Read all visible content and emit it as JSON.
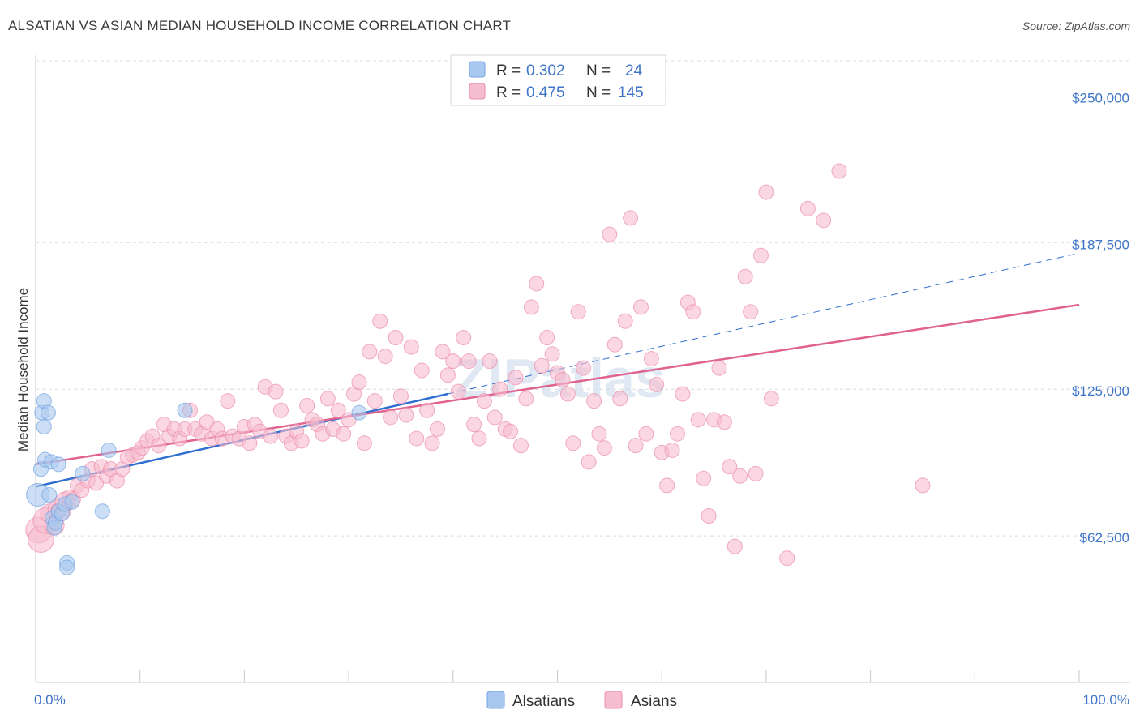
{
  "title": "ALSATIAN VS ASIAN MEDIAN HOUSEHOLD INCOME CORRELATION CHART",
  "source": "Source: ZipAtlas.com",
  "watermark": "ZIPatlas",
  "colors": {
    "blue": "#6fa3e0",
    "blue_fill": "#a9c8ef",
    "blue_line": "#2f6fd0",
    "pink": "#eb8bab",
    "pink_fill": "#f6bccf",
    "pink_line": "#e0628f",
    "axis_label": "#3d74c7",
    "grid": "#dcdcdc"
  },
  "legend": {
    "rows": [
      {
        "r_label": "R =",
        "r_value": "0.302",
        "n_label": "N =",
        "n_value": "24"
      },
      {
        "r_label": "R =",
        "r_value": "0.475",
        "n_label": "N =",
        "n_value": "145"
      }
    ]
  },
  "bottom_legend": [
    "Alsatians",
    "Asians"
  ],
  "chart_data": {
    "type": "scatter",
    "title": "ALSATIAN VS ASIAN MEDIAN HOUSEHOLD INCOME CORRELATION CHART",
    "xlabel": "",
    "ylabel": "Median Household Income",
    "xlim": [
      0,
      100
    ],
    "ylim": [
      0,
      265000
    ],
    "x_tick_labels": [
      "0.0%",
      "100.0%"
    ],
    "y_ticks": [
      62500,
      125000,
      187500,
      250000
    ],
    "y_tick_labels": [
      "$62,500",
      "$125,000",
      "$187,500",
      "$250,000"
    ],
    "grid": true,
    "series": [
      {
        "name": "Alsatians",
        "R": 0.302,
        "N": 24,
        "trend": {
          "x0": 0,
          "y0": 83500,
          "x1": 39.5,
          "y1": 123000,
          "dash_to_x": 100,
          "dash_to_y": 183000
        },
        "points": [
          [
            0.2,
            80000
          ],
          [
            0.5,
            91000
          ],
          [
            0.6,
            115000
          ],
          [
            0.8,
            109000
          ],
          [
            0.8,
            120000
          ],
          [
            0.9,
            95000
          ],
          [
            1.2,
            115000
          ],
          [
            1.3,
            80000
          ],
          [
            1.5,
            94000
          ],
          [
            1.6,
            70000
          ],
          [
            1.8,
            66000
          ],
          [
            1.9,
            68000
          ],
          [
            2.2,
            93000
          ],
          [
            2.2,
            73000
          ],
          [
            2.5,
            72000
          ],
          [
            2.8,
            76000
          ],
          [
            3.0,
            51000
          ],
          [
            3.0,
            49000
          ],
          [
            3.5,
            77000
          ],
          [
            4.5,
            89000
          ],
          [
            6.4,
            73000
          ],
          [
            7.0,
            99000
          ],
          [
            14.3,
            116000
          ],
          [
            31.0,
            115000
          ]
        ]
      },
      {
        "name": "Asians",
        "R": 0.475,
        "N": 145,
        "trend": {
          "x0": 0,
          "y0": 93000,
          "x1": 100,
          "y1": 161000
        },
        "points": [
          [
            0.3,
            65000
          ],
          [
            0.5,
            61000
          ],
          [
            1.0,
            69000
          ],
          [
            1.4,
            72000
          ],
          [
            1.8,
            67000
          ],
          [
            2.1,
            74000
          ],
          [
            2.4,
            73000
          ],
          [
            2.8,
            77000
          ],
          [
            3.2,
            79000
          ],
          [
            3.6,
            78000
          ],
          [
            4.0,
            84000
          ],
          [
            4.4,
            82000
          ],
          [
            5.0,
            86000
          ],
          [
            5.4,
            91000
          ],
          [
            5.8,
            85000
          ],
          [
            6.3,
            92000
          ],
          [
            6.8,
            88000
          ],
          [
            7.2,
            91000
          ],
          [
            7.8,
            86000
          ],
          [
            8.3,
            91000
          ],
          [
            8.8,
            96000
          ],
          [
            9.3,
            97000
          ],
          [
            9.8,
            98000
          ],
          [
            10.2,
            100000
          ],
          [
            10.7,
            103000
          ],
          [
            11.2,
            105000
          ],
          [
            11.8,
            101000
          ],
          [
            12.3,
            110000
          ],
          [
            12.8,
            105000
          ],
          [
            13.3,
            108000
          ],
          [
            13.8,
            104000
          ],
          [
            14.3,
            108000
          ],
          [
            14.8,
            116000
          ],
          [
            15.3,
            108000
          ],
          [
            15.9,
            106000
          ],
          [
            16.4,
            111000
          ],
          [
            16.9,
            104000
          ],
          [
            17.4,
            108000
          ],
          [
            17.9,
            104000
          ],
          [
            18.4,
            120000
          ],
          [
            18.9,
            105000
          ],
          [
            19.5,
            104000
          ],
          [
            20.0,
            109000
          ],
          [
            20.5,
            102000
          ],
          [
            21.0,
            110000
          ],
          [
            21.5,
            107000
          ],
          [
            22.0,
            126000
          ],
          [
            22.5,
            105000
          ],
          [
            23.0,
            124000
          ],
          [
            23.5,
            116000
          ],
          [
            24.0,
            105000
          ],
          [
            24.5,
            102000
          ],
          [
            25.0,
            107000
          ],
          [
            25.5,
            103000
          ],
          [
            26.0,
            118000
          ],
          [
            26.5,
            112000
          ],
          [
            27.0,
            110000
          ],
          [
            27.5,
            106000
          ],
          [
            28.0,
            121000
          ],
          [
            28.5,
            108000
          ],
          [
            29.0,
            116000
          ],
          [
            29.5,
            106000
          ],
          [
            30.0,
            112000
          ],
          [
            30.5,
            123000
          ],
          [
            31.0,
            128000
          ],
          [
            31.5,
            102000
          ],
          [
            32.0,
            141000
          ],
          [
            32.5,
            120000
          ],
          [
            33.0,
            154000
          ],
          [
            33.5,
            139000
          ],
          [
            34.0,
            113000
          ],
          [
            34.5,
            147000
          ],
          [
            35.0,
            122000
          ],
          [
            35.5,
            114000
          ],
          [
            36.0,
            143000
          ],
          [
            36.5,
            104000
          ],
          [
            37.0,
            133000
          ],
          [
            37.5,
            116000
          ],
          [
            38.0,
            102000
          ],
          [
            38.5,
            108000
          ],
          [
            39.0,
            141000
          ],
          [
            39.5,
            131000
          ],
          [
            40.0,
            137000
          ],
          [
            40.5,
            124000
          ],
          [
            41.0,
            147000
          ],
          [
            41.5,
            137000
          ],
          [
            42.0,
            110000
          ],
          [
            42.5,
            104000
          ],
          [
            43.0,
            120000
          ],
          [
            43.5,
            137000
          ],
          [
            44.0,
            113000
          ],
          [
            44.5,
            125000
          ],
          [
            45.0,
            108000
          ],
          [
            45.5,
            107000
          ],
          [
            46.0,
            130000
          ],
          [
            46.5,
            101000
          ],
          [
            47.0,
            121000
          ],
          [
            47.5,
            160000
          ],
          [
            48.0,
            170000
          ],
          [
            48.5,
            135000
          ],
          [
            49.0,
            147000
          ],
          [
            49.5,
            140000
          ],
          [
            50.0,
            132000
          ],
          [
            50.5,
            129000
          ],
          [
            51.0,
            123000
          ],
          [
            51.5,
            102000
          ],
          [
            52.0,
            158000
          ],
          [
            52.5,
            134000
          ],
          [
            53.0,
            94000
          ],
          [
            53.5,
            120000
          ],
          [
            54.0,
            106000
          ],
          [
            54.5,
            100000
          ],
          [
            55.0,
            191000
          ],
          [
            55.5,
            144000
          ],
          [
            56.0,
            121000
          ],
          [
            56.5,
            154000
          ],
          [
            57.0,
            198000
          ],
          [
            57.5,
            101000
          ],
          [
            58.0,
            160000
          ],
          [
            58.5,
            106000
          ],
          [
            59.0,
            138000
          ],
          [
            59.5,
            127000
          ],
          [
            60.0,
            98000
          ],
          [
            60.5,
            84000
          ],
          [
            61.0,
            99000
          ],
          [
            61.5,
            106000
          ],
          [
            62.0,
            123000
          ],
          [
            62.5,
            162000
          ],
          [
            63.0,
            158000
          ],
          [
            63.5,
            112000
          ],
          [
            64.0,
            87000
          ],
          [
            64.5,
            71000
          ],
          [
            65.0,
            112000
          ],
          [
            65.5,
            134000
          ],
          [
            66.0,
            111000
          ],
          [
            66.5,
            92000
          ],
          [
            67.0,
            58000
          ],
          [
            67.5,
            88000
          ],
          [
            68.0,
            173000
          ],
          [
            68.5,
            158000
          ],
          [
            69.0,
            89000
          ],
          [
            69.5,
            182000
          ],
          [
            70.0,
            209000
          ],
          [
            70.5,
            121000
          ],
          [
            72.0,
            53000
          ],
          [
            74.0,
            202000
          ],
          [
            75.5,
            197000
          ],
          [
            77.0,
            218000
          ],
          [
            85.0,
            84000
          ]
        ]
      }
    ]
  }
}
